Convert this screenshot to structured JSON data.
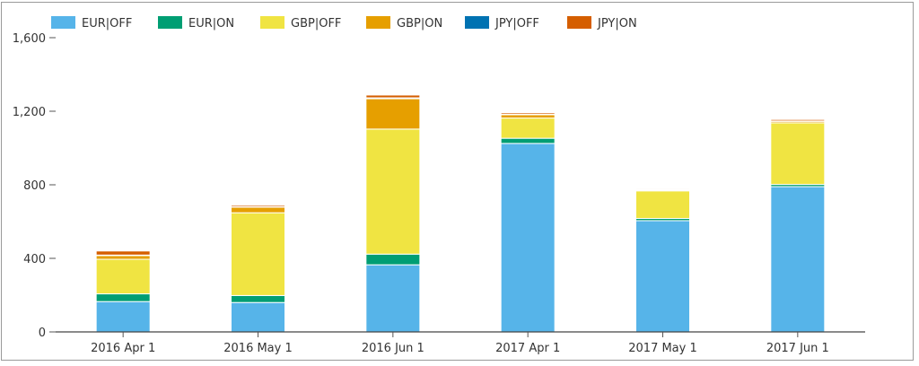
{
  "chart_data": {
    "type": "bar",
    "stacked": true,
    "categories": [
      "2016 Apr 1",
      "2016 May 1",
      "2016 Jun 1",
      "2017 Apr 1",
      "2017 May 1",
      "2017 Jun 1"
    ],
    "series": [
      {
        "name": "EUR|OFF",
        "color": "#56b4e9",
        "values": [
          165,
          160,
          365,
          1025,
          605,
          790
        ]
      },
      {
        "name": "EUR|ON",
        "color": "#009e73",
        "values": [
          42,
          38,
          58,
          28,
          12,
          12
        ]
      },
      {
        "name": "GBP|OFF",
        "color": "#f0e442",
        "values": [
          188,
          450,
          680,
          110,
          150,
          335
        ]
      },
      {
        "name": "GBP|ON",
        "color": "#e69f00",
        "values": [
          20,
          30,
          165,
          18,
          5,
          8
        ]
      },
      {
        "name": "JPY|OFF",
        "color": "#0072b2",
        "values": [
          3,
          2,
          5,
          2,
          2,
          2
        ]
      },
      {
        "name": "JPY|ON",
        "color": "#d55e00",
        "values": [
          22,
          8,
          15,
          8,
          5,
          8
        ]
      }
    ],
    "yticks": [
      0,
      400,
      800,
      1200,
      1600
    ],
    "ytick_labels": [
      "0",
      "400",
      "800",
      "1,200",
      "1,600"
    ],
    "ylim": [
      0,
      1600
    ],
    "legend_position": "top",
    "grid": false
  }
}
